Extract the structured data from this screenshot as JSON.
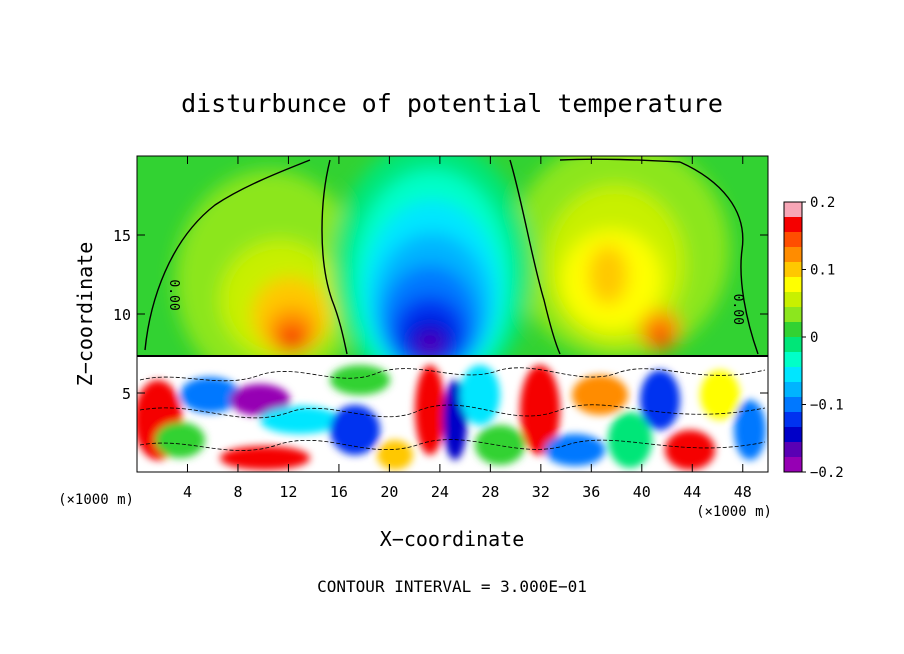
{
  "chart_data": {
    "type": "heatmap",
    "title": "disturbunce of potential temperature",
    "xlabel": "X−coordinate",
    "ylabel": "Z−coordinate",
    "x_unit": "(×1000 m)",
    "x_unit_right": "(×1000 m)",
    "footer": "CONTOUR INTERVAL = 3.000E−01",
    "xlim": [
      0,
      50
    ],
    "ylim": [
      0,
      20
    ],
    "x_ticks": [
      4,
      8,
      12,
      16,
      20,
      24,
      28,
      32,
      36,
      40,
      44,
      48
    ],
    "x_tick_labels": [
      "4",
      "8",
      "12",
      "16",
      "20",
      "24",
      "28",
      "32",
      "36",
      "40",
      "44",
      "48"
    ],
    "y_ticks": [
      5,
      10,
      15
    ],
    "y_tick_labels": [
      "5",
      "10",
      "15"
    ],
    "colorbar": {
      "min": -0.2,
      "max": 0.2,
      "tick_values": [
        0.2,
        0.1,
        0,
        -0.1,
        -0.2
      ],
      "tick_labels": [
        "0.2",
        "0.1",
        "0",
        "−0.1",
        "−0.2"
      ],
      "colors": [
        "#f7a6b6",
        "#f50000",
        "#ff4e00",
        "#ff8c00",
        "#ffc800",
        "#ffff00",
        "#c8f000",
        "#8ce61e",
        "#32d232",
        "#00e678",
        "#00ffc8",
        "#00e6ff",
        "#00b4ff",
        "#0078ff",
        "#0032f0",
        "#0000c8",
        "#5a00b4",
        "#9600b4"
      ]
    },
    "contour_labels": [
      {
        "text": "0.00",
        "x": 2.6,
        "z": 11.2
      },
      {
        "text": "0.00",
        "x": 47.3,
        "z": 10.3
      }
    ],
    "notes_fields": {
      "upper_layer_top_z": 20,
      "interface_z": 7.3
    }
  }
}
